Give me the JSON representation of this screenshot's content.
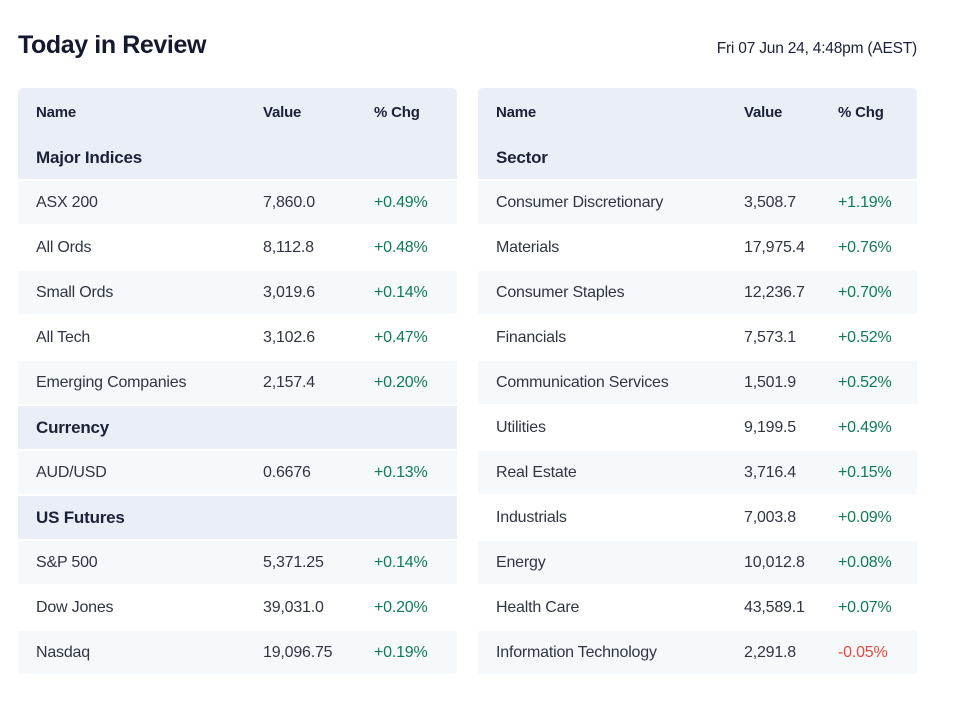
{
  "header": {
    "title": "Today in Review",
    "timestamp": "Fri 07 Jun 24, 4:48pm (AEST)"
  },
  "columns": {
    "name": "Name",
    "value": "Value",
    "chg": "% Chg"
  },
  "left_table": {
    "sections": [
      {
        "title": "Major Indices",
        "rows": [
          {
            "name": "ASX 200",
            "value": "7,860.0",
            "chg": "+0.49%"
          },
          {
            "name": "All Ords",
            "value": "8,112.8",
            "chg": "+0.48%"
          },
          {
            "name": "Small Ords",
            "value": "3,019.6",
            "chg": "+0.14%"
          },
          {
            "name": "All Tech",
            "value": "3,102.6",
            "chg": "+0.47%"
          },
          {
            "name": "Emerging Companies",
            "value": "2,157.4",
            "chg": "+0.20%"
          }
        ]
      },
      {
        "title": "Currency",
        "rows": [
          {
            "name": "AUD/USD",
            "value": "0.6676",
            "chg": "+0.13%"
          }
        ]
      },
      {
        "title": "US Futures",
        "rows": [
          {
            "name": "S&P 500",
            "value": "5,371.25",
            "chg": "+0.14%"
          },
          {
            "name": "Dow Jones",
            "value": "39,031.0",
            "chg": "+0.20%"
          },
          {
            "name": "Nasdaq",
            "value": "19,096.75",
            "chg": "+0.19%"
          }
        ]
      }
    ]
  },
  "right_table": {
    "sections": [
      {
        "title": "Sector",
        "rows": [
          {
            "name": "Consumer Discretionary",
            "value": "3,508.7",
            "chg": "+1.19%"
          },
          {
            "name": "Materials",
            "value": "17,975.4",
            "chg": "+0.76%"
          },
          {
            "name": "Consumer Staples",
            "value": "12,236.7",
            "chg": "+0.70%"
          },
          {
            "name": "Financials",
            "value": "7,573.1",
            "chg": "+0.52%"
          },
          {
            "name": "Communication Services",
            "value": "1,501.9",
            "chg": "+0.52%"
          },
          {
            "name": "Utilities",
            "value": "9,199.5",
            "chg": "+0.49%"
          },
          {
            "name": "Real Estate",
            "value": "3,716.4",
            "chg": "+0.15%"
          },
          {
            "name": "Industrials",
            "value": "7,003.8",
            "chg": "+0.09%"
          },
          {
            "name": "Energy",
            "value": "10,012.8",
            "chg": "+0.08%"
          },
          {
            "name": "Health Care",
            "value": "43,589.1",
            "chg": "+0.07%"
          },
          {
            "name": "Information Technology",
            "value": "2,291.8",
            "chg": "-0.05%"
          }
        ]
      }
    ]
  },
  "colors": {
    "positive": "#0e7c54",
    "negative": "#e8473c",
    "header_bg": "#e9eef7",
    "row_alt_bg": "#f6f9fb",
    "heading_text": "#14192e"
  }
}
